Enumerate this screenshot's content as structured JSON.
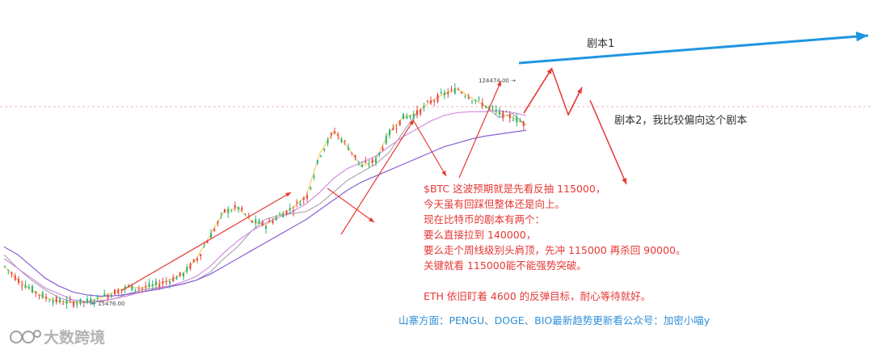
{
  "chart_data": {
    "type": "line",
    "symbol": "BTC",
    "grid": false,
    "price_labels": {
      "high": "124474.00 →",
      "low": "← 15476.00"
    },
    "series": [
      {
        "color": "#9a9aa8",
        "values": [
          40,
          33,
          27,
          22,
          18,
          16,
          15.5,
          16,
          17.5,
          20,
          22,
          23,
          24,
          25,
          27,
          31,
          38,
          44,
          52,
          58,
          60,
          61,
          62,
          66,
          72,
          78,
          82,
          86,
          92,
          102,
          112,
          118,
          122,
          124.5,
          120,
          116,
          110,
          112,
          106
        ]
      },
      {
        "color": "#f5d060",
        "values": [
          34,
          27,
          22,
          18,
          16,
          15.5,
          16,
          18,
          21,
          23.5,
          23,
          24.5,
          27,
          30,
          38,
          50,
          62,
          64,
          57,
          55,
          60,
          64,
          70,
          92,
          103,
          95,
          85,
          88,
          102,
          110,
          112,
          118,
          122,
          124.5,
          120,
          116,
          112,
          110,
          106
        ]
      },
      {
        "color": "#d28fe0",
        "values": [
          38,
          33,
          28,
          23,
          20,
          17,
          16,
          16.5,
          17.5,
          19,
          21,
          22.5,
          24,
          26,
          29,
          34,
          41,
          47,
          52,
          56,
          59,
          62,
          66,
          72,
          79,
          84,
          87,
          90,
          95,
          100,
          104,
          108,
          111,
          112.5,
          113,
          113,
          113.5,
          112.5,
          111
        ]
      },
      {
        "color": "#8a5fd8",
        "values": [
          44,
          40,
          34,
          28,
          24,
          21,
          19.5,
          18.8,
          19,
          19.8,
          21,
          22,
          23.5,
          25,
          27,
          30,
          34,
          38,
          42,
          46,
          50,
          54,
          58,
          63,
          68,
          73,
          77,
          80,
          83,
          86,
          89,
          92,
          95,
          97,
          99,
          100.5,
          101.5,
          102.5,
          103.5
        ]
      }
    ],
    "reference_line": 115000,
    "scenarios": [
      {
        "label": "剧本1",
        "color": "#2196e0",
        "target": 140000
      },
      {
        "label": "剧本2，我比较偏向这个剧本",
        "color": "#e53935",
        "target": 90000
      }
    ]
  },
  "annotation": {
    "lines": [
      "$BTC 这波预期就是先看反抽 115000，",
      "今天虽有回踩但整体还是向上。",
      "现在比特币的剧本有两个：",
      "要么直接拉到 140000，",
      "要么走个周线级别头肩顶，先冲 115000 再杀回 90000。",
      "关键就看 115000能不能强势突破。",
      "",
      "ETH 依旧盯着 4600 的反弹目标，耐心等待就好。"
    ]
  },
  "footer": {
    "text": "山寨方面：PENGU、DOGE、BIO最新趋势更新看公众号：加密小喵y"
  },
  "watermark": {
    "text": "大数跨境",
    "icon": "logo-icon"
  }
}
